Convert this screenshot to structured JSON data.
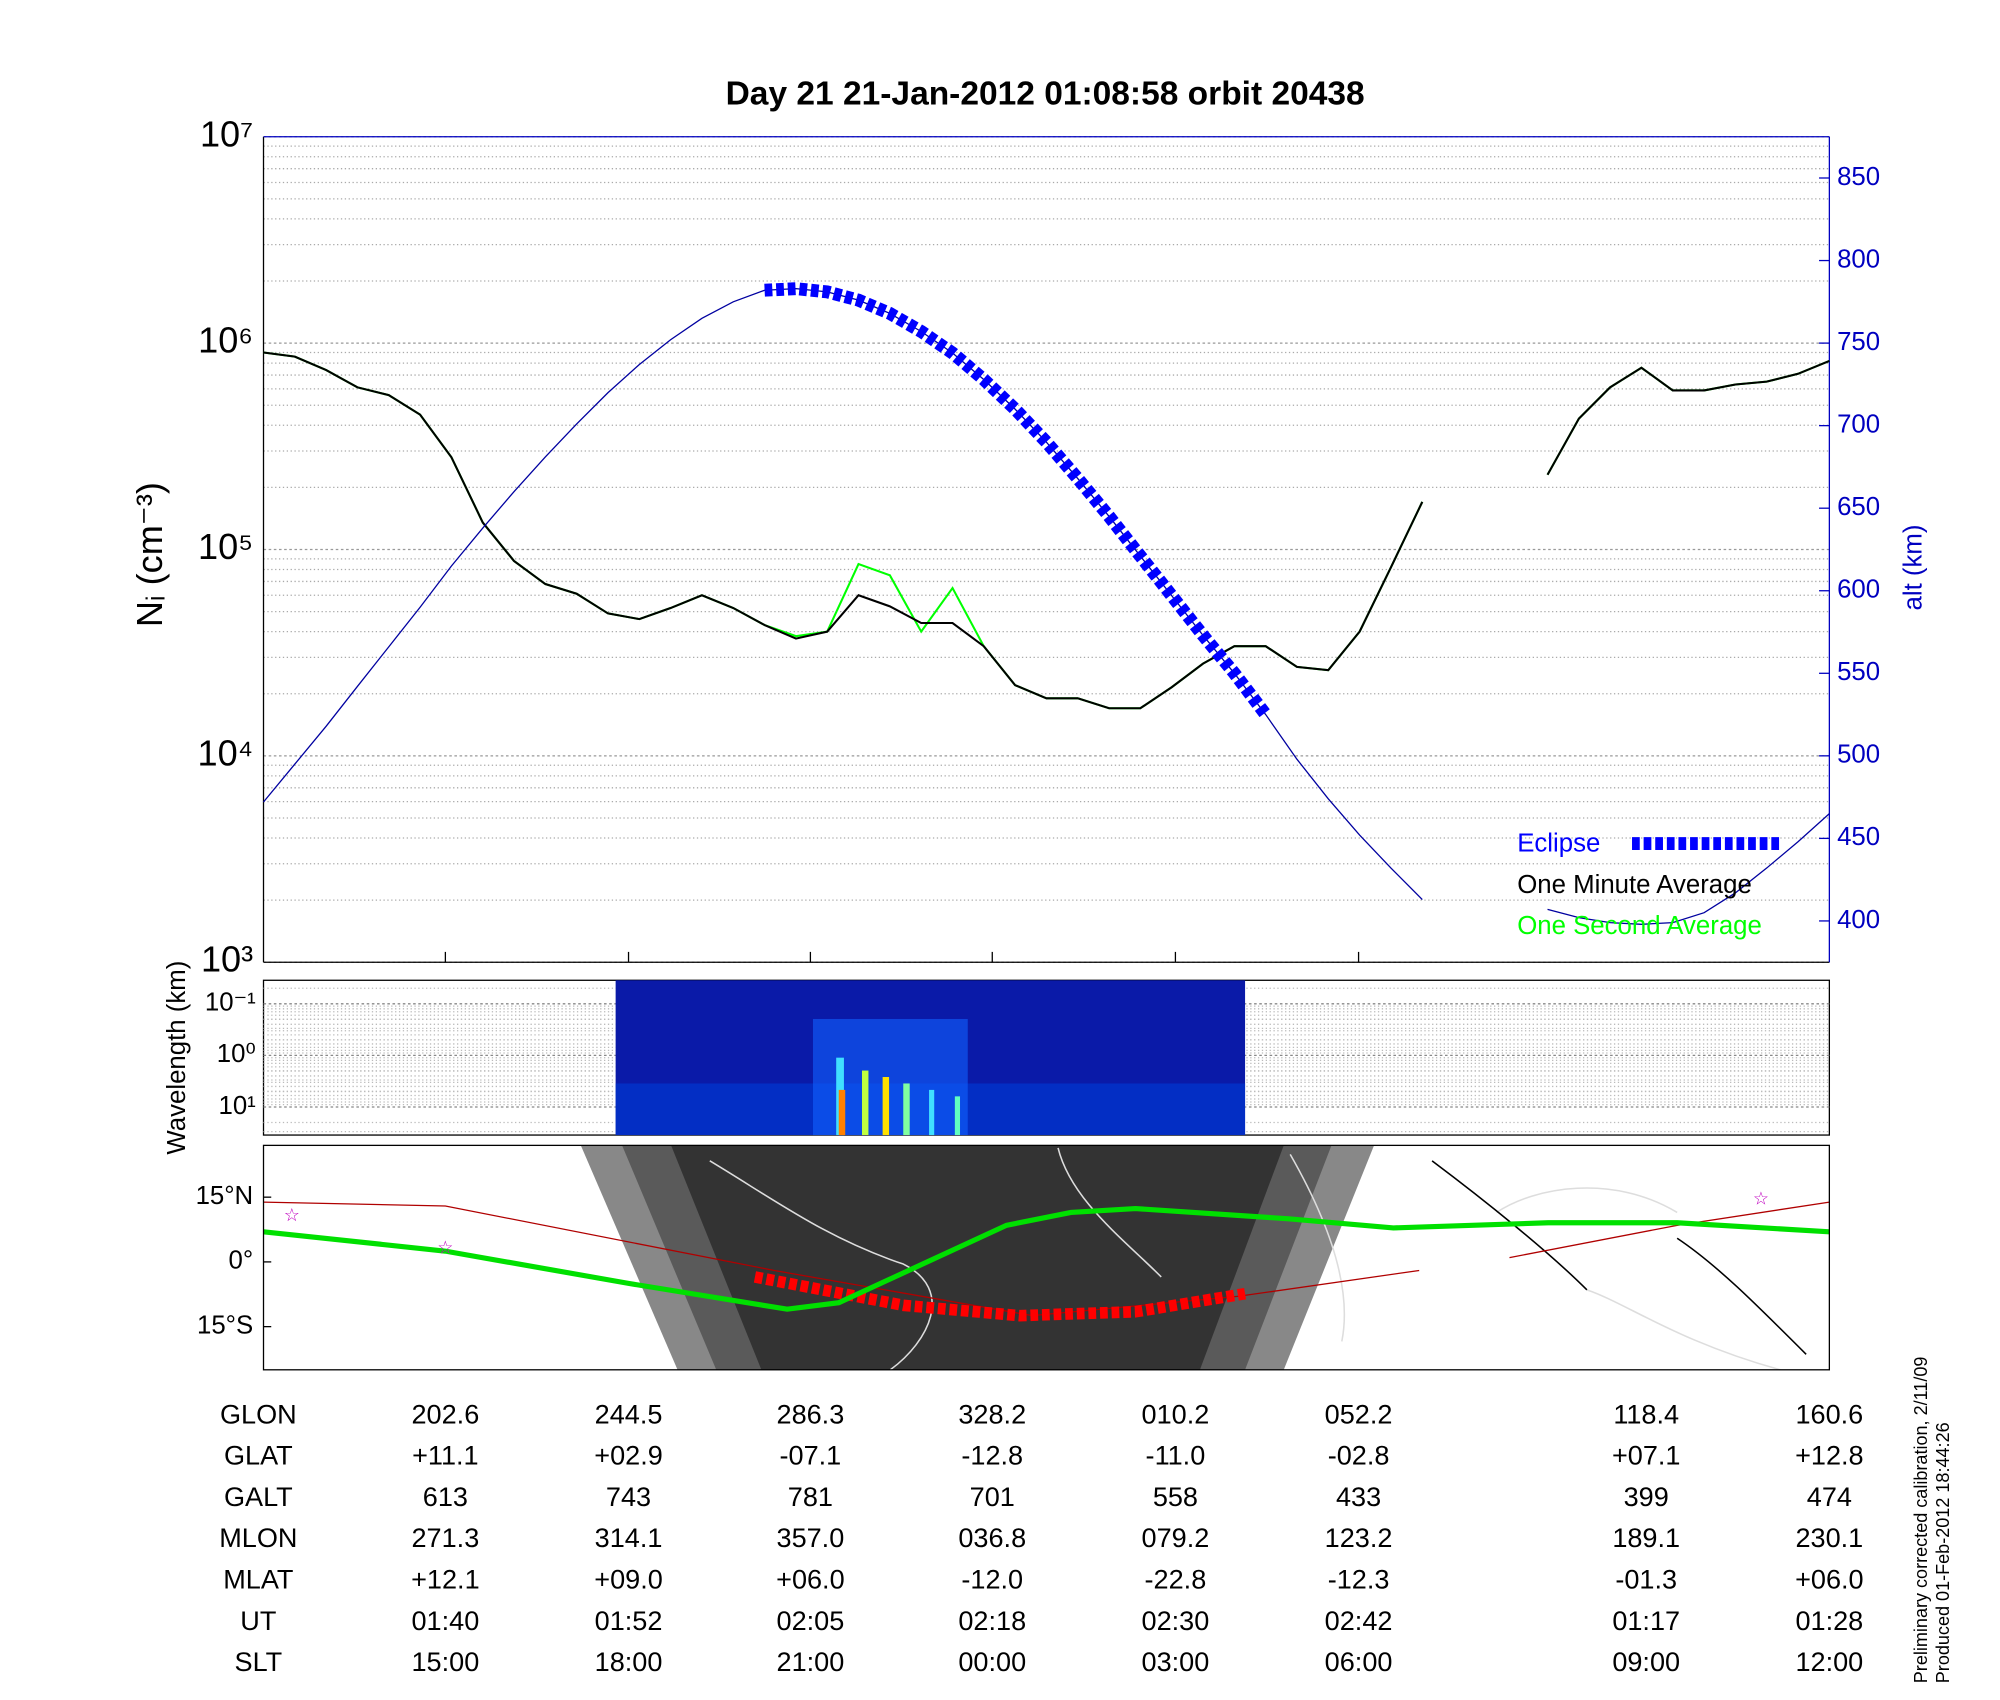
{
  "chart_data": {
    "type": "line",
    "title": "Day 21  21-Jan-2012 01:08:58   orbit 20438",
    "y_label": "Nᵢ (cm⁻³)",
    "y2_label": "alt (km)",
    "log_scale": true,
    "grid": true,
    "legend": "lower right",
    "ylim": [
      1000,
      10000000
    ],
    "yticks": [
      {
        "value": 1000,
        "label": "10³"
      },
      {
        "value": 10000,
        "label": "10⁴"
      },
      {
        "value": 100000,
        "label": "10⁵"
      },
      {
        "value": 1000000,
        "label": "10⁶"
      },
      {
        "value": 10000000,
        "label": "10⁷"
      }
    ],
    "y2lim": [
      375,
      875
    ],
    "y2ticks": [
      400,
      450,
      500,
      550,
      600,
      650,
      700,
      750,
      800,
      850
    ],
    "series": [
      {
        "name": "One Second Average",
        "color": "#00ff00",
        "values": [
          900000,
          860000,
          740000,
          610000,
          560000,
          450000,
          280000,
          135000,
          88000,
          68000,
          61000,
          49000,
          46000,
          52000,
          60000,
          52000,
          43000,
          38000,
          40000,
          85000,
          75000,
          40000,
          65000,
          34000,
          22000,
          19000,
          19000,
          17000,
          17000,
          21500,
          28000,
          34000,
          34000,
          27000,
          26000,
          40000,
          82000,
          170000,
          null,
          null,
          null,
          230000,
          430000,
          610000,
          760000,
          590000,
          590000,
          630000,
          650000,
          710000,
          820000
        ]
      },
      {
        "name": "One Minute Average",
        "color": "#000000",
        "values": [
          900000,
          860000,
          740000,
          610000,
          560000,
          450000,
          280000,
          135000,
          88000,
          68000,
          61000,
          49000,
          46000,
          52000,
          60000,
          52000,
          43000,
          37000,
          40000,
          60000,
          53000,
          44000,
          44000,
          34000,
          22000,
          19000,
          19000,
          17000,
          17000,
          21500,
          28000,
          34000,
          34000,
          27000,
          26000,
          40000,
          82000,
          170000,
          null,
          null,
          null,
          230000,
          430000,
          610000,
          760000,
          590000,
          590000,
          630000,
          650000,
          710000,
          820000
        ]
      },
      {
        "name": "alt",
        "axis": "y2",
        "color": "#0000a0",
        "values": [
          472,
          495,
          518,
          542,
          566,
          590,
          615,
          638,
          660,
          681,
          701,
          720,
          737,
          752,
          765,
          775,
          782,
          783,
          781,
          776,
          768,
          757,
          744,
          728,
          710,
          690,
          668,
          645,
          621,
          597,
          573,
          550,
          525,
          498,
          474,
          452,
          432,
          413,
          null,
          null,
          null,
          407,
          402,
          399,
          398,
          399,
          405,
          417,
          432,
          448,
          465
        ]
      },
      {
        "name": "Eclipse",
        "axis": "y2",
        "color": "#0000ff",
        "values": [
          null,
          null,
          null,
          null,
          null,
          null,
          null,
          null,
          null,
          null,
          null,
          null,
          null,
          null,
          null,
          null,
          782,
          783,
          781,
          776,
          768,
          757,
          744,
          728,
          710,
          690,
          668,
          645,
          621,
          597,
          573,
          550,
          525,
          null,
          null,
          null,
          null,
          null,
          null,
          null,
          null,
          null,
          null,
          null,
          null,
          null,
          null,
          null,
          null,
          null,
          null
        ]
      }
    ]
  },
  "spectrogram": {
    "y_label": "Wavelength (km)",
    "ylim": [
      35,
      0.035
    ],
    "yticks": [
      {
        "value": 0.1,
        "label": "10⁻¹"
      },
      {
        "value": 1,
        "label": "10⁰"
      },
      {
        "value": 10,
        "label": "10¹"
      }
    ]
  },
  "map": {
    "ylim": [
      -25,
      27
    ],
    "yticks": [
      {
        "value": 15,
        "label": "15°N"
      },
      {
        "value": 0,
        "label": "0°"
      },
      {
        "value": -15,
        "label": "15°S"
      }
    ]
  },
  "table": {
    "rows": [
      {
        "label": "GLON",
        "values": [
          "202.6",
          "244.5",
          "286.3",
          "328.2",
          "010.2",
          "052.2",
          "118.4",
          "160.6"
        ]
      },
      {
        "label": "GLAT",
        "values": [
          "+11.1",
          "+02.9",
          "-07.1",
          "-12.8",
          "-11.0",
          "-02.8",
          "+07.1",
          "+12.8"
        ]
      },
      {
        "label": "GALT",
        "values": [
          "613",
          "743",
          "781",
          "701",
          "558",
          "433",
          "399",
          "474"
        ]
      },
      {
        "label": "MLON",
        "values": [
          "271.3",
          "314.1",
          "357.0",
          "036.8",
          "079.2",
          "123.2",
          "189.1",
          "230.1"
        ]
      },
      {
        "label": "MLAT",
        "values": [
          "+12.1",
          "+09.0",
          "+06.0",
          "-12.0",
          "-22.8",
          "-12.3",
          "-01.3",
          "+06.0"
        ]
      },
      {
        "label": "UT",
        "values": [
          "01:40",
          "01:52",
          "02:05",
          "02:18",
          "02:30",
          "02:42",
          "01:17",
          "01:28"
        ]
      },
      {
        "label": "SLT",
        "values": [
          "15:00",
          "18:00",
          "21:00",
          "00:00",
          "03:00",
          "06:00",
          "09:00",
          "12:00"
        ]
      }
    ]
  },
  "notes": [
    "Preliminary corrected calibration, 2/11/09",
    "Produced 01-Feb-2012 18:44:26"
  ]
}
